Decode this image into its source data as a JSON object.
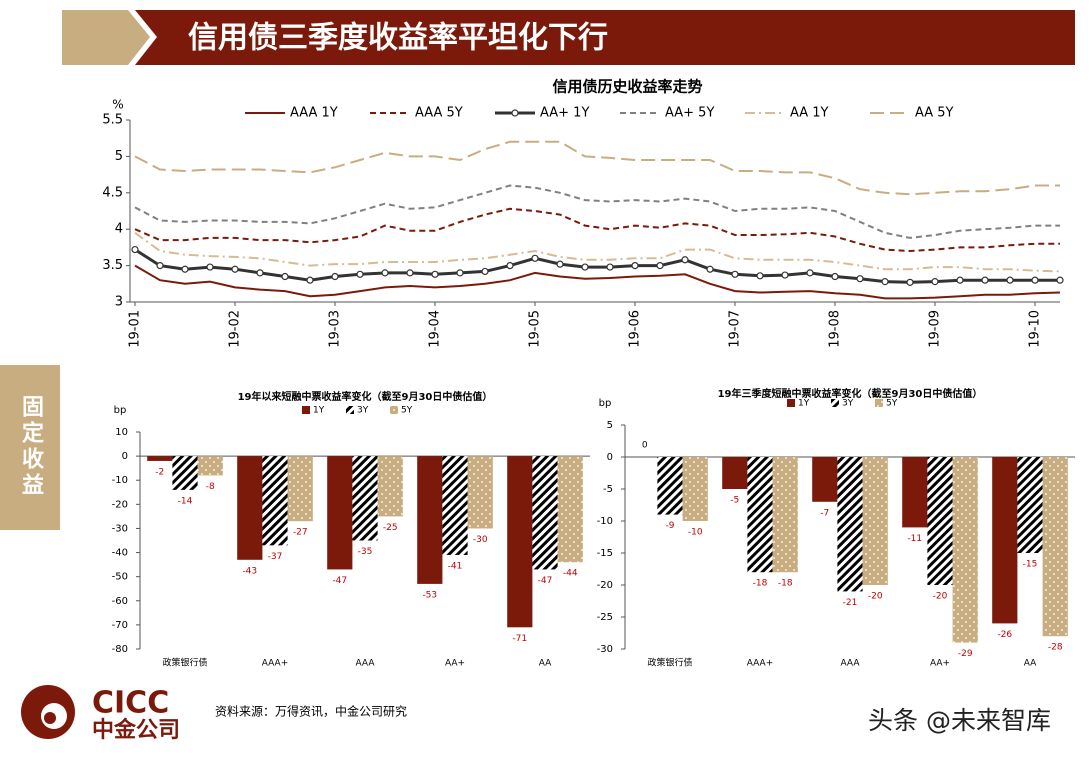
{
  "header": {
    "title": "信用债三季度收益率平坦化下行"
  },
  "side_label": "固定收益",
  "footer": {
    "logo_en": "CICC",
    "logo_cn": "中金公司",
    "source": "资料来源：万得资讯，中金公司研究",
    "watermark": "头条 @未来智库"
  },
  "chart_data": [
    {
      "type": "line",
      "title": "信用债历史收益率走势",
      "y_unit": "%",
      "x": [
        "19-01",
        null,
        null,
        null,
        "19-02",
        null,
        null,
        null,
        "19-03",
        null,
        null,
        null,
        "19-04",
        null,
        null,
        null,
        "19-05",
        null,
        null,
        null,
        "19-06",
        null,
        null,
        null,
        "19-07",
        null,
        null,
        null,
        "19-08",
        null,
        null,
        null,
        "19-09",
        null,
        null,
        null,
        "19-10",
        null
      ],
      "ylim": [
        3,
        5.5
      ],
      "yticks": [
        3,
        3.5,
        4,
        4.5,
        5,
        5.5
      ],
      "series": [
        {
          "name": "AAA 1Y",
          "color": "#7b1a0a",
          "dash": "solid",
          "values": [
            3.5,
            3.3,
            3.25,
            3.28,
            3.2,
            3.17,
            3.15,
            3.08,
            3.1,
            3.15,
            3.2,
            3.22,
            3.2,
            3.22,
            3.25,
            3.3,
            3.4,
            3.35,
            3.32,
            3.33,
            3.35,
            3.36,
            3.38,
            3.25,
            3.15,
            3.13,
            3.14,
            3.15,
            3.12,
            3.1,
            3.05,
            3.05,
            3.06,
            3.08,
            3.1,
            3.1,
            3.12,
            3.13
          ]
        },
        {
          "name": "AAA 5Y",
          "color": "#7b1a0a",
          "dash": "dashed",
          "values": [
            4.0,
            3.85,
            3.85,
            3.88,
            3.88,
            3.85,
            3.85,
            3.82,
            3.85,
            3.9,
            4.05,
            3.98,
            3.98,
            4.1,
            4.2,
            4.28,
            4.25,
            4.2,
            4.05,
            4.0,
            4.05,
            4.02,
            4.08,
            4.05,
            3.92,
            3.92,
            3.93,
            3.95,
            3.9,
            3.8,
            3.72,
            3.7,
            3.72,
            3.75,
            3.75,
            3.78,
            3.8,
            3.8
          ]
        },
        {
          "name": "AA+ 1Y",
          "color": "#333333",
          "dash": "solid",
          "marker": "circle",
          "values": [
            3.72,
            3.5,
            3.45,
            3.48,
            3.45,
            3.4,
            3.35,
            3.3,
            3.35,
            3.38,
            3.4,
            3.4,
            3.38,
            3.4,
            3.42,
            3.5,
            3.6,
            3.52,
            3.48,
            3.48,
            3.5,
            3.5,
            3.58,
            3.45,
            3.38,
            3.36,
            3.37,
            3.4,
            3.35,
            3.32,
            3.28,
            3.27,
            3.28,
            3.3,
            3.3,
            3.3,
            3.3,
            3.3
          ]
        },
        {
          "name": "AA+ 5Y",
          "color": "#808080",
          "dash": "dashed",
          "values": [
            4.3,
            4.12,
            4.1,
            4.12,
            4.12,
            4.1,
            4.1,
            4.08,
            4.15,
            4.25,
            4.35,
            4.28,
            4.3,
            4.4,
            4.5,
            4.6,
            4.57,
            4.5,
            4.4,
            4.38,
            4.4,
            4.38,
            4.42,
            4.38,
            4.25,
            4.28,
            4.28,
            4.3,
            4.25,
            4.1,
            3.95,
            3.88,
            3.92,
            3.98,
            4.0,
            4.02,
            4.05,
            4.05
          ]
        },
        {
          "name": "AA 1Y",
          "color": "#d4bc94",
          "dash": "dashdot",
          "values": [
            3.95,
            3.7,
            3.65,
            3.63,
            3.62,
            3.6,
            3.55,
            3.5,
            3.52,
            3.52,
            3.55,
            3.55,
            3.55,
            3.58,
            3.6,
            3.65,
            3.7,
            3.62,
            3.58,
            3.58,
            3.6,
            3.6,
            3.72,
            3.72,
            3.6,
            3.58,
            3.58,
            3.58,
            3.55,
            3.5,
            3.45,
            3.45,
            3.48,
            3.48,
            3.45,
            3.45,
            3.43,
            3.42
          ]
        },
        {
          "name": "AA 5Y",
          "color": "#c8ad80",
          "dash": "longdash",
          "values": [
            5.0,
            4.82,
            4.8,
            4.82,
            4.82,
            4.82,
            4.8,
            4.78,
            4.85,
            4.95,
            5.05,
            5.0,
            5.0,
            4.95,
            5.1,
            5.2,
            5.2,
            5.2,
            5.0,
            4.98,
            4.95,
            4.95,
            4.95,
            4.95,
            4.8,
            4.8,
            4.78,
            4.78,
            4.7,
            4.55,
            4.5,
            4.48,
            4.5,
            4.52,
            4.52,
            4.55,
            4.6,
            4.6
          ]
        }
      ]
    },
    {
      "type": "bar",
      "title": "19年以来短融中票收益率变化（截至9月30日中债估值）",
      "y_unit": "bp",
      "categories": [
        "政策银行债",
        "AAA+",
        "AAA",
        "AA+",
        "AA"
      ],
      "ylim": [
        -80,
        10
      ],
      "yticks": [
        -80,
        -70,
        -60,
        -50,
        -40,
        -30,
        -20,
        -10,
        0,
        10
      ],
      "series": [
        {
          "name": "1Y",
          "color": "#7b1a0a",
          "pattern": "solid",
          "values": [
            -2,
            -43,
            -47,
            -53,
            -71
          ]
        },
        {
          "name": "3Y",
          "color": "#000000",
          "pattern": "stripes",
          "values": [
            -14,
            -37,
            -35,
            -41,
            -47
          ]
        },
        {
          "name": "5Y",
          "color": "#c8ad80",
          "pattern": "dots",
          "values": [
            -8,
            -27,
            -25,
            -30,
            -44
          ]
        }
      ]
    },
    {
      "type": "bar",
      "title": "19年三季度短融中票收益率变化（截至9月30日中债估值）",
      "y_unit": "bp",
      "categories": [
        "政策银行债",
        "AAA+",
        "AAA",
        "AA+",
        "AA"
      ],
      "ylim": [
        -30,
        5
      ],
      "yticks": [
        -30,
        -25,
        -20,
        -15,
        -10,
        -5,
        0,
        5
      ],
      "series": [
        {
          "name": "1Y",
          "color": "#7b1a0a",
          "pattern": "solid",
          "values": [
            0,
            -5,
            -7,
            -11,
            -26
          ]
        },
        {
          "name": "3Y",
          "color": "#000000",
          "pattern": "stripes",
          "values": [
            -9,
            -18,
            -21,
            -20,
            -15
          ]
        },
        {
          "name": "5Y",
          "color": "#c8ad80",
          "pattern": "dots",
          "values": [
            -10,
            -18,
            -20,
            -29,
            -28
          ]
        }
      ]
    }
  ]
}
